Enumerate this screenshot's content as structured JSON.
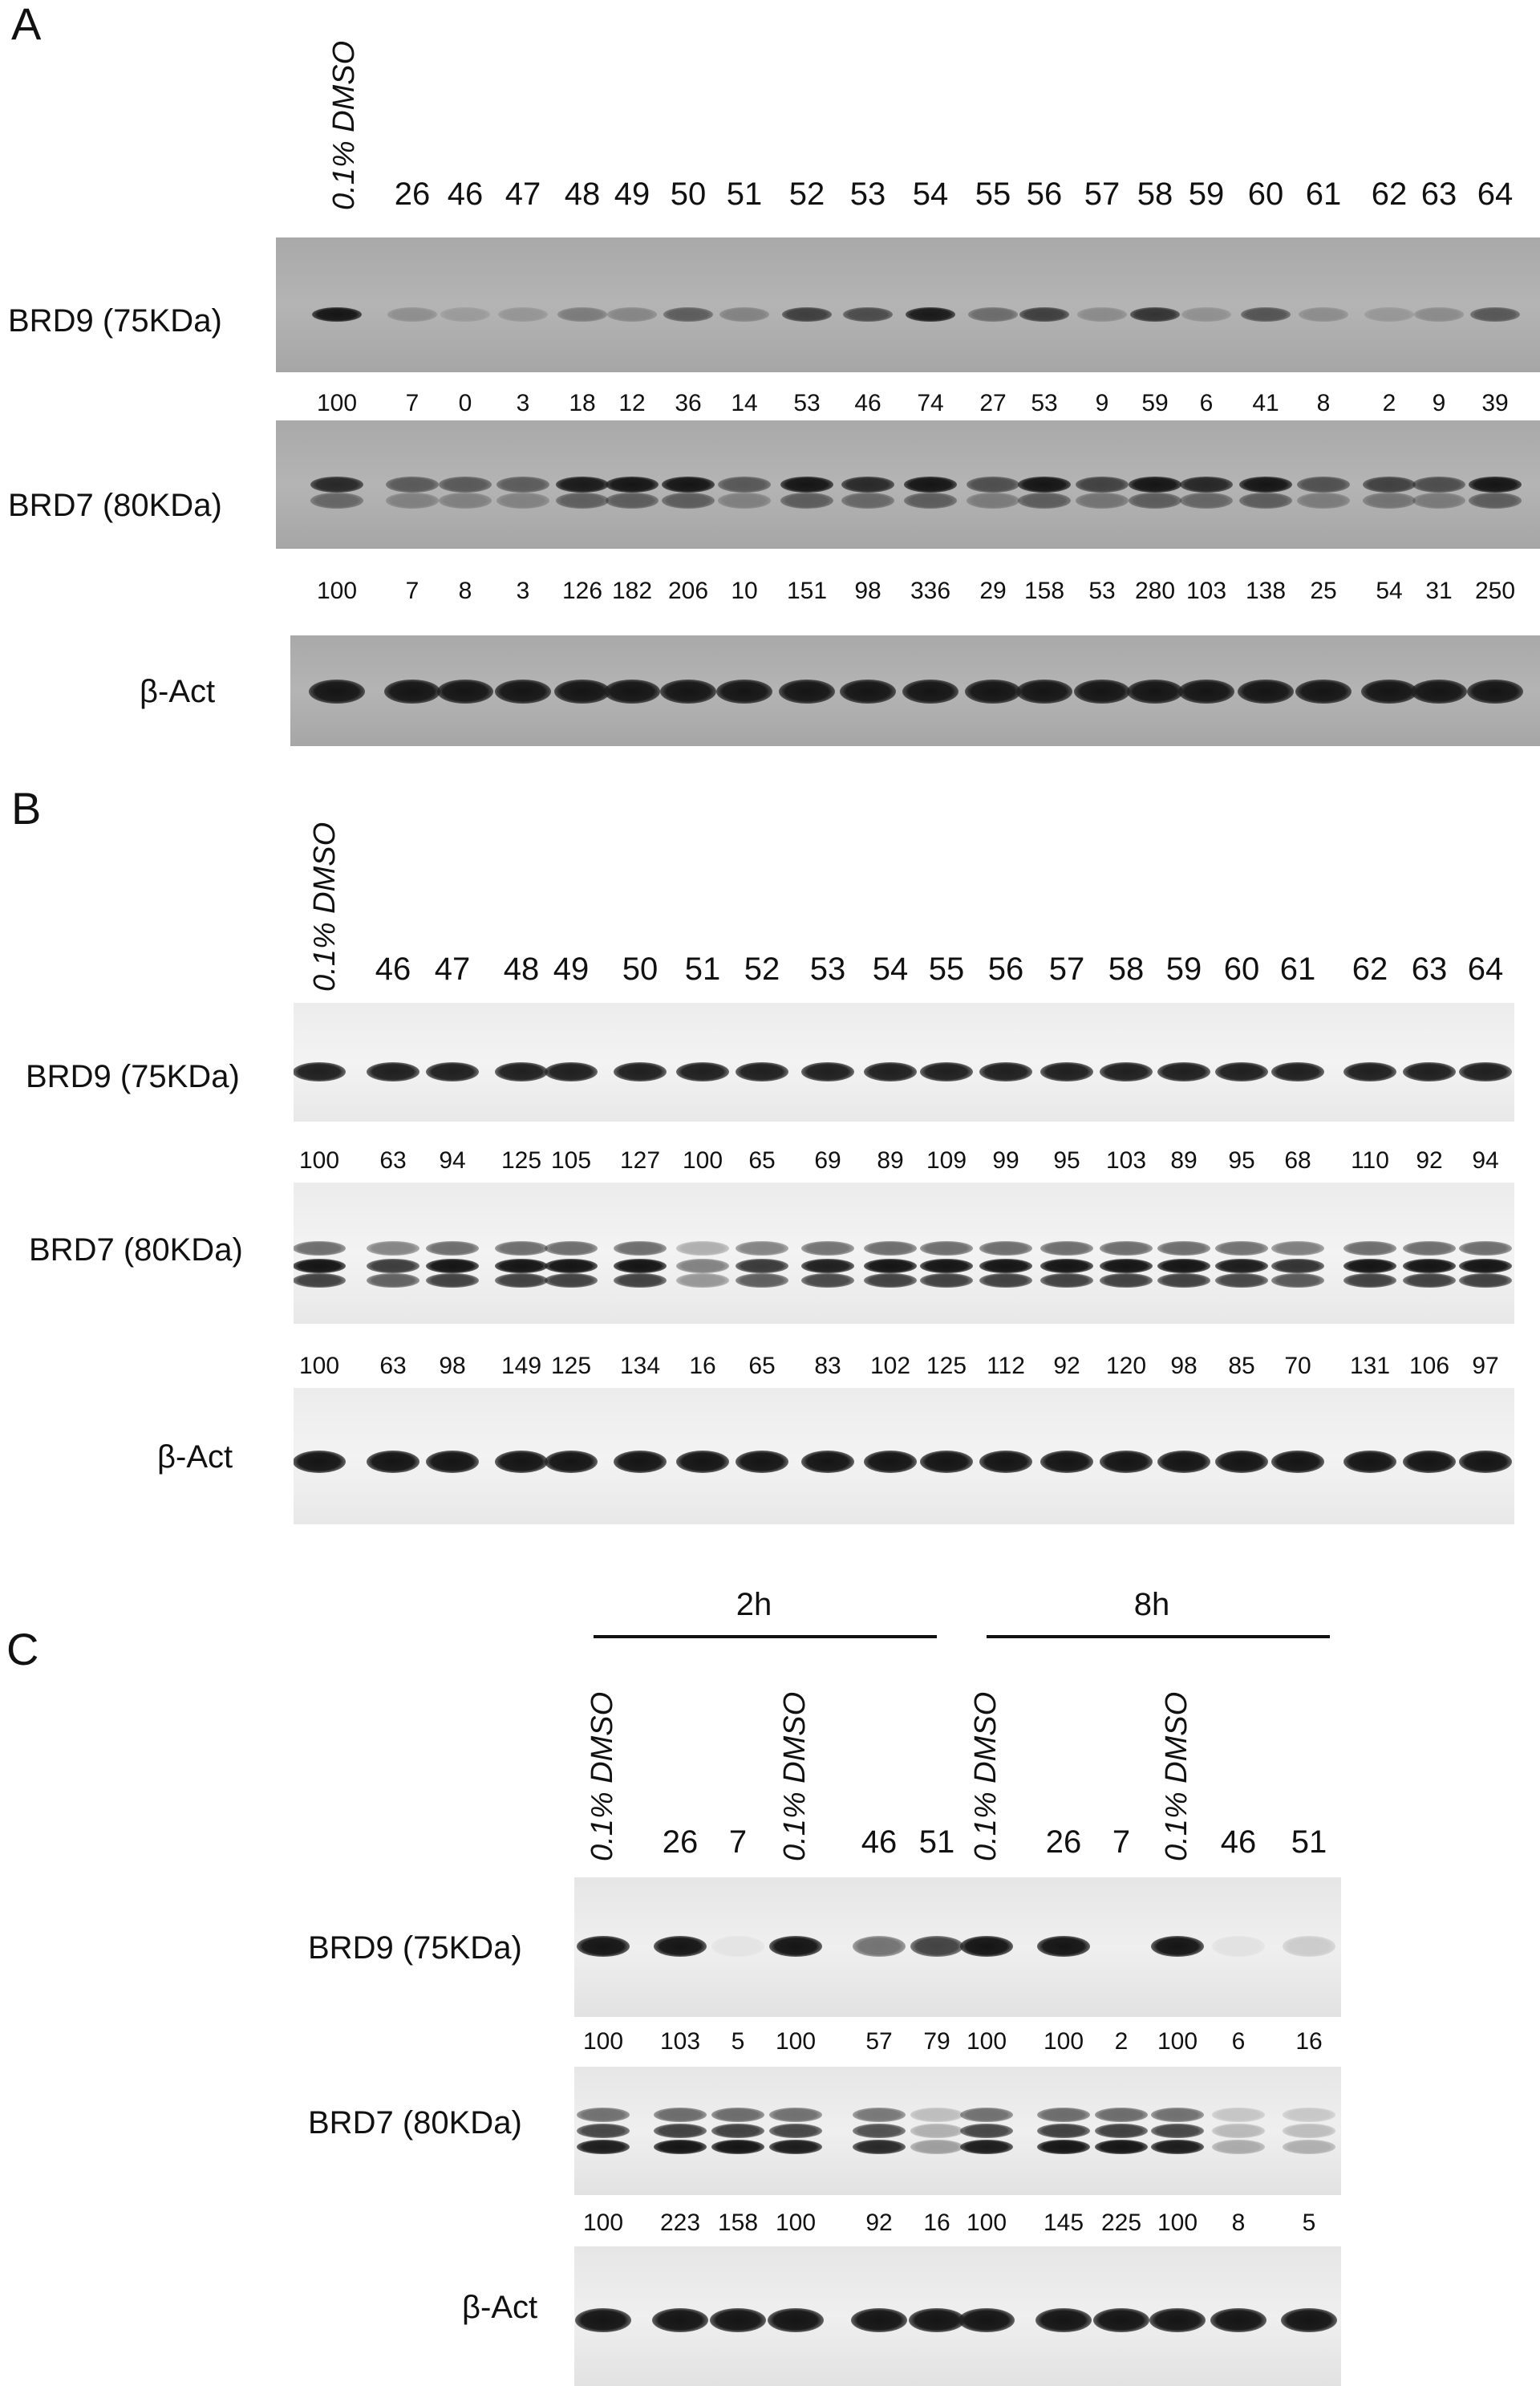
{
  "panelA": {
    "letter": "A",
    "dmso_label": "0.1% DMSO",
    "lanes": [
      "26",
      "46",
      "47",
      "48",
      "49",
      "50",
      "51",
      "52",
      "53",
      "54",
      "55",
      "56",
      "57",
      "58",
      "59",
      "60",
      "61",
      "62",
      "63",
      "64"
    ],
    "brd9_label": "BRD9 (75KDa)",
    "brd9_values": [
      "100",
      "7",
      "0",
      "3",
      "18",
      "12",
      "36",
      "14",
      "53",
      "46",
      "74",
      "27",
      "53",
      "9",
      "59",
      "6",
      "41",
      "8",
      "2",
      "9",
      "39"
    ],
    "brd7_label": "BRD7 (80KDa)",
    "brd7_values": [
      "100",
      "7",
      "8",
      "3",
      "126",
      "182",
      "206",
      "10",
      "151",
      "98",
      "336",
      "29",
      "158",
      "53",
      "280",
      "103",
      "138",
      "25",
      "54",
      "31",
      "250"
    ],
    "actin_label": "β-Act"
  },
  "panelB": {
    "letter": "B",
    "dmso_label": "0.1% DMSO",
    "lanes": [
      "46",
      "47",
      "48",
      "49",
      "50",
      "51",
      "52",
      "53",
      "54",
      "55",
      "56",
      "57",
      "58",
      "59",
      "60",
      "61",
      "62",
      "63",
      "64"
    ],
    "brd9_label": "BRD9 (75KDa)",
    "brd9_values": [
      "100",
      "63",
      "94",
      "125",
      "105",
      "127",
      "100",
      "65",
      "69",
      "89",
      "109",
      "99",
      "95",
      "103",
      "89",
      "95",
      "68",
      "110",
      "92",
      "94"
    ],
    "brd7_label": "BRD7 (80KDa)",
    "brd7_values": [
      "100",
      "63",
      "98",
      "149",
      "125",
      "134",
      "16",
      "65",
      "83",
      "102",
      "125",
      "112",
      "92",
      "120",
      "98",
      "85",
      "70",
      "131",
      "106",
      "97"
    ],
    "actin_label": "β-Act"
  },
  "panelC": {
    "letter": "C",
    "group1": "2h",
    "group2": "8h",
    "dmso_label": "0.1% DMSO",
    "lanes": [
      "0.1% DMSO",
      "26",
      "7",
      "0.1% DMSO",
      "46",
      "51",
      "0.1% DMSO",
      "26",
      "7",
      "0.1% DMSO",
      "46",
      "51"
    ],
    "brd9_label": "BRD9 (75KDa)",
    "brd9_values": [
      "100",
      "103",
      "5",
      "100",
      "57",
      "79",
      "100",
      "100",
      "2",
      "100",
      "6",
      "16"
    ],
    "brd7_label": "BRD7 (80KDa)",
    "brd7_values": [
      "100",
      "223",
      "158",
      "100",
      "92",
      "16",
      "100",
      "145",
      "225",
      "100",
      "8",
      "5"
    ],
    "actin_label": "β-Act"
  }
}
